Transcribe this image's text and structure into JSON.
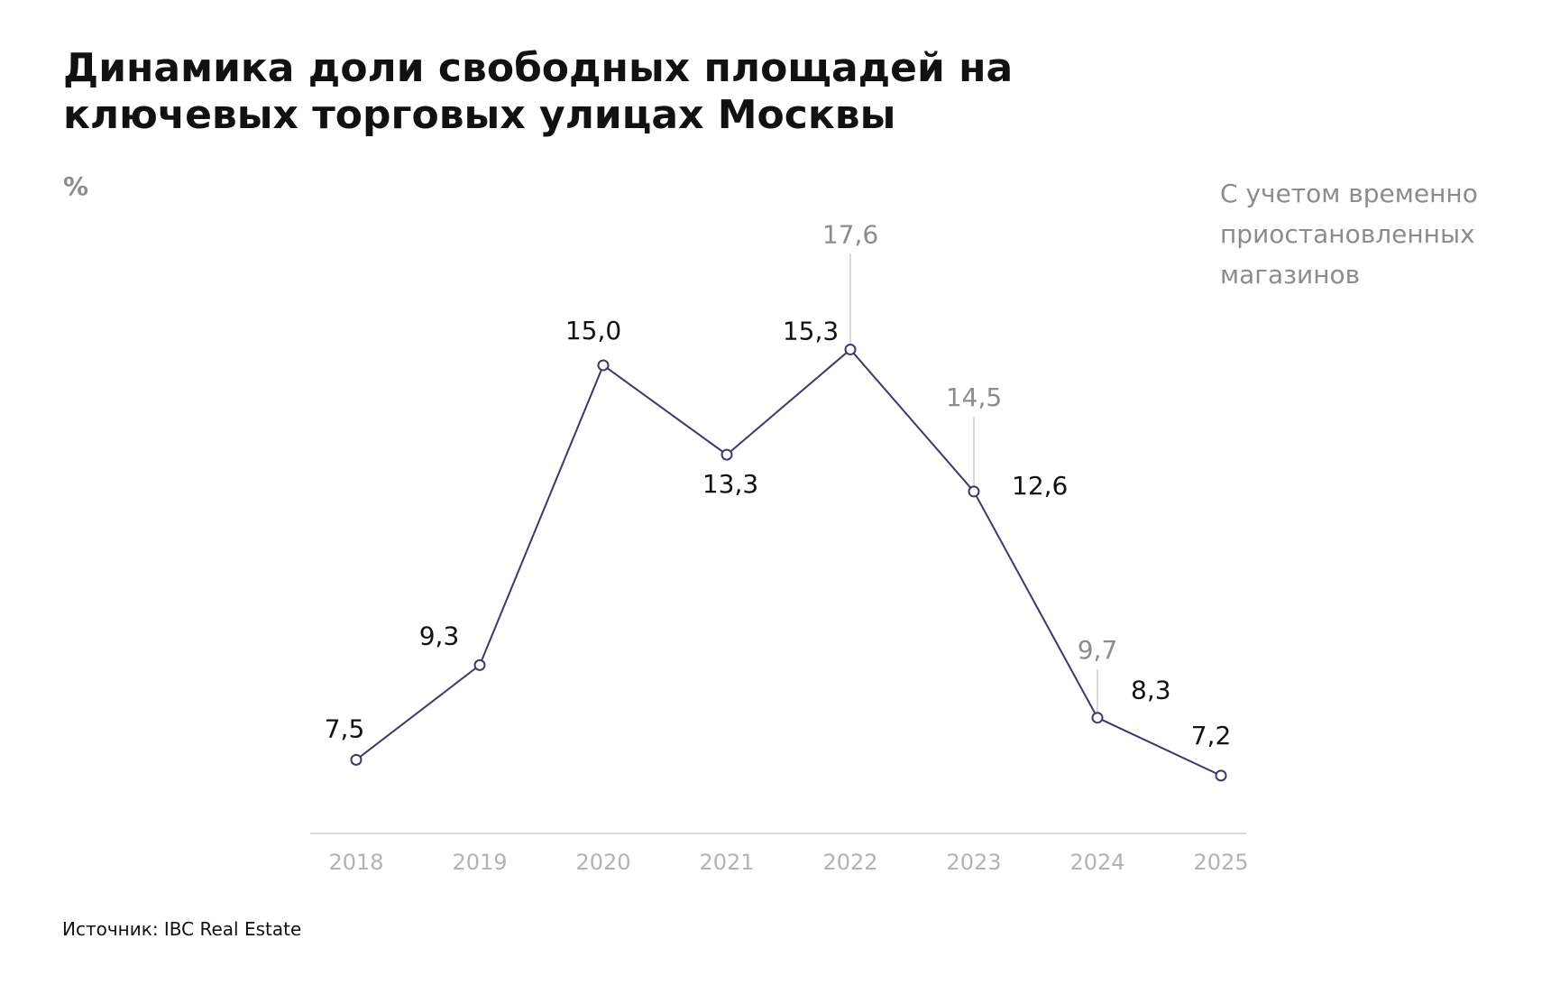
{
  "chart_data": {
    "type": "line",
    "title": "Динамика доли свободных площадей на ключевых торговых улицах Москвы",
    "y_label": "%",
    "source": "Источник: IBC Real Estate",
    "categories": [
      "2018",
      "2019",
      "2020",
      "2021",
      "2022",
      "2023",
      "2024",
      "2025"
    ],
    "series": [
      {
        "color": "#3f3868",
        "values": [
          7.5,
          9.3,
          15.0,
          13.3,
          15.3,
          12.6,
          8.3,
          7.2
        ],
        "value_labels": [
          "7,5",
          "9,3",
          "15,0",
          "13,3",
          "15,3",
          "12,6",
          "8,3",
          "7,2"
        ]
      },
      {
        "name": "С учетом временно приостановленных магазинов",
        "color": "#8c8c8c",
        "values": [
          null,
          null,
          null,
          null,
          17.6,
          14.5,
          9.7,
          null
        ],
        "value_labels": [
          null,
          null,
          null,
          null,
          "17,6",
          "14,5",
          "9,7",
          null
        ]
      }
    ],
    "ylim": [
      6.1,
      18
    ]
  }
}
